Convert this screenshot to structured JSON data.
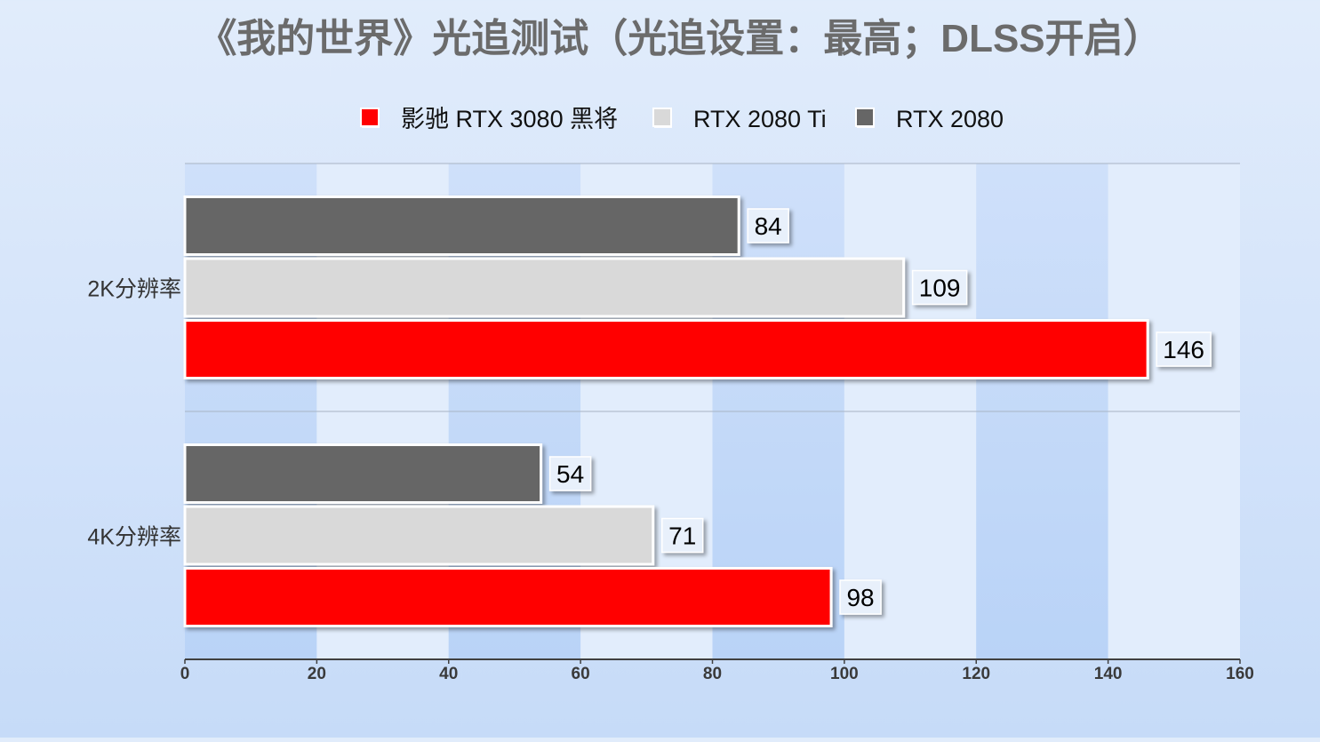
{
  "chart_data": {
    "type": "bar",
    "orientation": "horizontal",
    "title": "《我的世界》光追测试（光追设置：最高；DLSS开启）",
    "categories": [
      "2K分辨率",
      "4K分辨率"
    ],
    "series": [
      {
        "name": "影驰 RTX 3080 黑将",
        "color": "#ff0000",
        "values": [
          146,
          98
        ]
      },
      {
        "name": "RTX 2080 Ti",
        "color": "#d9d9d9",
        "values": [
          109,
          71
        ]
      },
      {
        "name": "RTX 2080",
        "color": "#666666",
        "values": [
          84,
          54
        ]
      }
    ],
    "xlim": [
      0,
      160
    ],
    "xticks": [
      0,
      20,
      40,
      60,
      80,
      100,
      120,
      140,
      160
    ],
    "legend_position": "top-center",
    "data_labels": true,
    "grid": "alternating vertical bands"
  }
}
